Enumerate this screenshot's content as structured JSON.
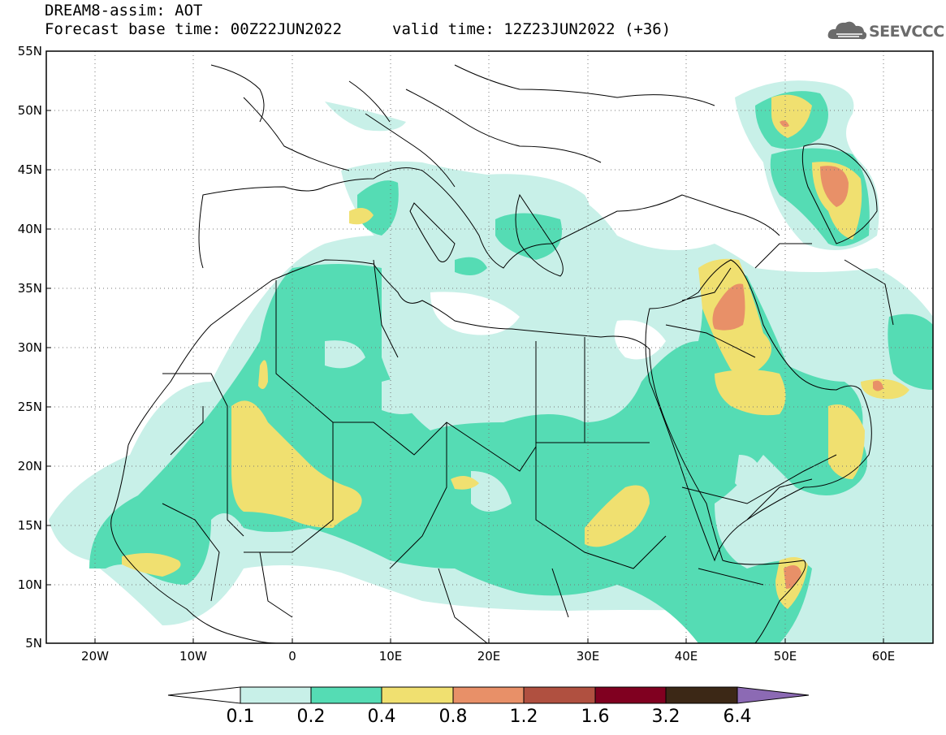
{
  "header": {
    "line1": "DREAM8-assim: AOT",
    "line2": "Forecast base time: 00Z22JUN2022",
    "valid": "valid time: 12Z23JUN2022 (+36)"
  },
  "logo": {
    "text": "SEEVCCC",
    "icon": "cloud-logo-icon"
  },
  "map": {
    "lat_labels": [
      "55N",
      "50N",
      "45N",
      "40N",
      "35N",
      "30N",
      "25N",
      "20N",
      "15N",
      "10N",
      "5N"
    ],
    "lon_labels": [
      "20W",
      "10W",
      "0",
      "10E",
      "20E",
      "30E",
      "40E",
      "50E",
      "60E"
    ],
    "lat_range": [
      5,
      55
    ],
    "lon_range": [
      -25,
      65
    ]
  },
  "colorbar": {
    "colors": [
      "#c8f0e8",
      "#55dcb4",
      "#f0e070",
      "#e89068",
      "#b05040",
      "#800020",
      "#3c2816",
      "#8c6ab4"
    ],
    "labels": [
      "0.1",
      "0.2",
      "0.4",
      "0.8",
      "1.2",
      "1.6",
      "3.2",
      "6.4"
    ]
  }
}
